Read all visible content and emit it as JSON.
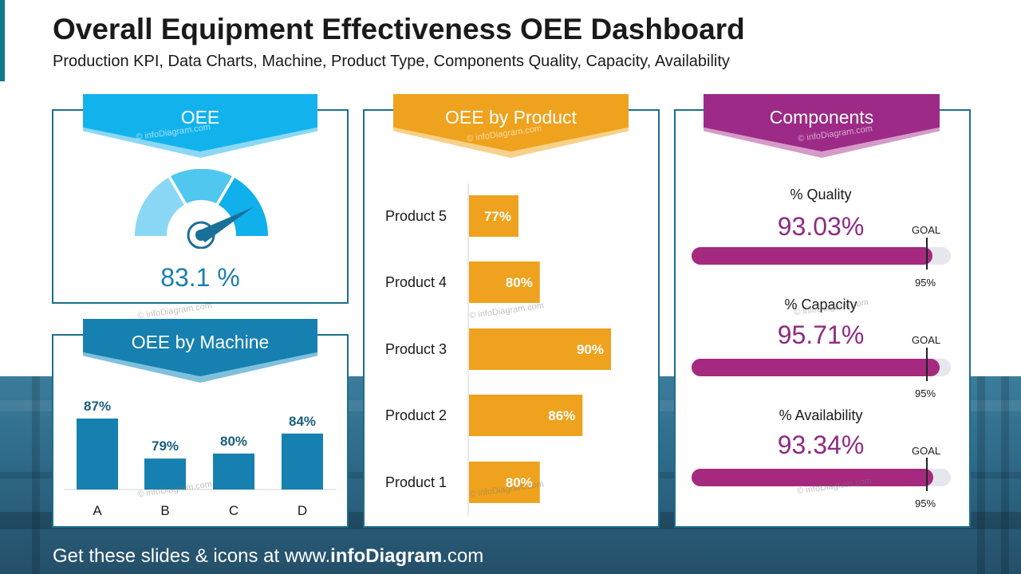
{
  "header": {
    "title": "Overall Equipment Effectiveness OEE Dashboard",
    "subtitle": "Production KPI, Data Charts, Machine, Product Type, Components Quality, Capacity, Availability"
  },
  "watermark": "© infoDiagram.com",
  "colors": {
    "oee": "#0fb0ec",
    "machine": "#1680b0",
    "product": "#efa21d",
    "components": "#9c2a86",
    "panel_border": "#1c6f8a"
  },
  "oee": {
    "title": "OEE",
    "value_label": "83.1 %",
    "value": 83.1,
    "icon": "gauge-icon"
  },
  "machine": {
    "title": "OEE by Machine",
    "chart_data": {
      "type": "bar",
      "categories": [
        "A",
        "B",
        "C",
        "D"
      ],
      "values": [
        87,
        79,
        80,
        84
      ],
      "data_labels": [
        "87%",
        "79%",
        "80%",
        "84%"
      ],
      "color": "#1680b0"
    }
  },
  "product": {
    "title": "OEE by Product",
    "chart_data": {
      "type": "bar",
      "orientation": "horizontal",
      "categories": [
        "Product 5",
        "Product 4",
        "Product 3",
        "Product 2",
        "Product 1"
      ],
      "values": [
        77,
        80,
        90,
        86,
        80
      ],
      "data_labels": [
        "77%",
        "80%",
        "90%",
        "86%",
        "80%"
      ],
      "color": "#efa21d"
    }
  },
  "components": {
    "title": "Components",
    "goal_label": "GOAL",
    "goal_value": "95%",
    "goal": 95,
    "items": [
      {
        "label": "% Quality",
        "value_label": "93.03%",
        "value": 93.03
      },
      {
        "label": "% Capacity",
        "value_label": "95.71%",
        "value": 95.71
      },
      {
        "label": "% Availability",
        "value_label": "93.34%",
        "value": 93.34
      }
    ]
  },
  "footer": {
    "prefix": "Get these slides & icons at www.",
    "brand": "infoDiagram",
    "suffix": ".com"
  }
}
